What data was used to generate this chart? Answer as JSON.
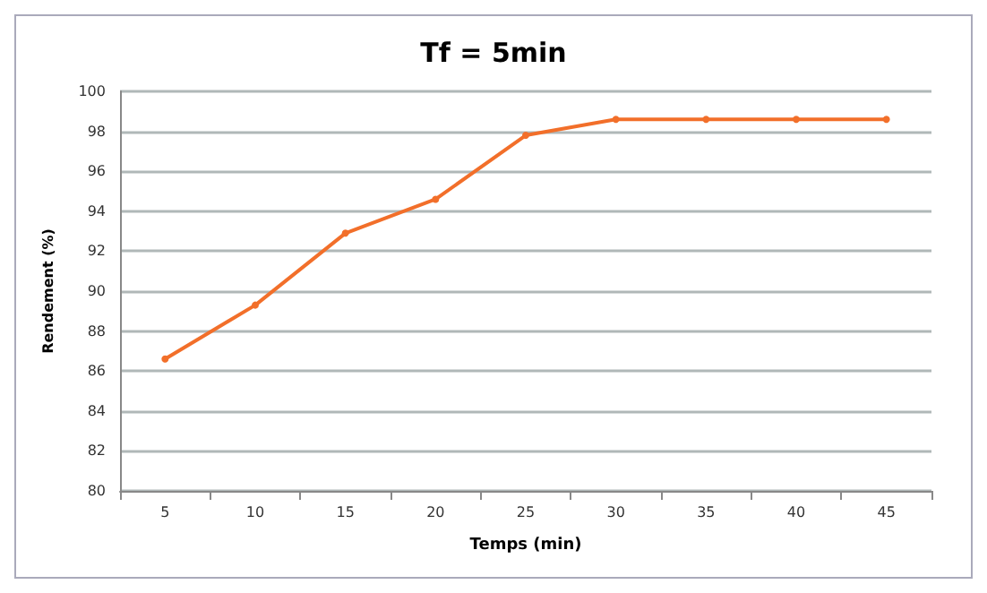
{
  "chart_data": {
    "type": "line",
    "title": "Tf = 5min",
    "xlabel": "Temps (min)",
    "ylabel": "Rendement (%)",
    "categories": [
      "5",
      "10",
      "15",
      "20",
      "25",
      "30",
      "35",
      "40",
      "45"
    ],
    "series": [
      {
        "color": "#f26f2a",
        "values": [
          86.6,
          89.3,
          92.9,
          94.6,
          97.8,
          98.6,
          98.6,
          98.6,
          98.6
        ]
      }
    ],
    "ylim": [
      80,
      100
    ],
    "yticks": [
      80,
      82,
      84,
      86,
      88,
      90,
      92,
      94,
      96,
      98,
      100
    ],
    "grid": "y",
    "marker": "circle",
    "line_style": "solid"
  }
}
